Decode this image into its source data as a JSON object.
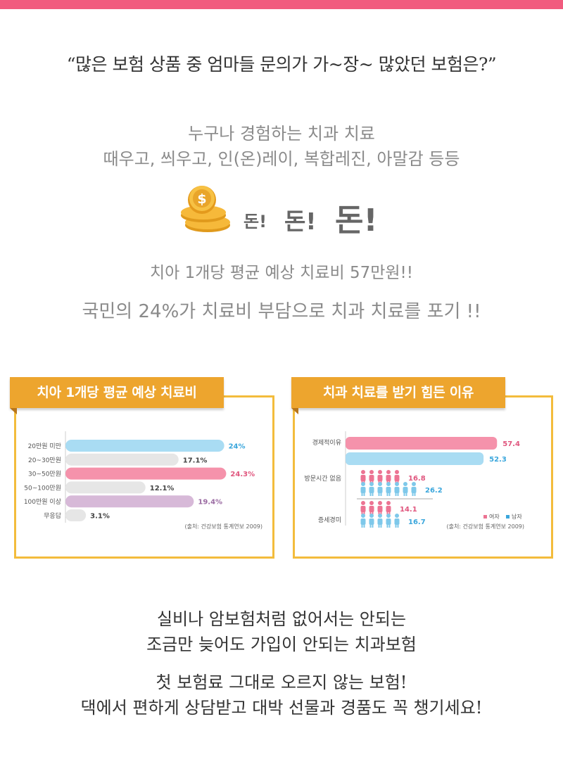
{
  "headline": "“많은 보험 상품 중 엄마들 문의가 가~장~ 많았던 보험은?”",
  "intro": {
    "line1": "누구나 경험하는 치과 치료",
    "line2": "때우고, 씌우고, 인(온)레이, 복합레진, 아말감 등등"
  },
  "money": {
    "word1": "돈!",
    "word2": "돈!",
    "word3": "돈!",
    "icon": "coin-stack-icon"
  },
  "stats": {
    "line1": "치아 1개당 평균 예상 치료비 57만원!!",
    "line2": "국민의 24%가 치료비 부담으로 치과 치료를 포기 !!"
  },
  "colors": {
    "accent_pink": "#f15b7e",
    "ribbon": "#eda52e",
    "panel_border": "#f3bc3c",
    "bar_blue": "#a9dcf3",
    "bar_pink": "#f592ab",
    "bar_purple": "#d7b9d8",
    "bar_gray": "#e6e6e6"
  },
  "chart_data": [
    {
      "type": "bar",
      "title": "치아 1개당 평균 예상 치료비",
      "categories": [
        "20만원 미만",
        "20~30만원",
        "30~50만원",
        "50~100만원",
        "100만원 이상",
        "무응답"
      ],
      "values": [
        24,
        17.1,
        24.3,
        12.1,
        19.4,
        3.1
      ],
      "labels": [
        "24%",
        "17.1%",
        "24.3%",
        "12.1%",
        "19.4%",
        "3.1%"
      ],
      "source": "(출처: 건강보험 통계연보 2009)"
    },
    {
      "type": "bar",
      "title": "치과 치료를 받기 힘든 이유",
      "categories": [
        "경제적이유",
        "방문시간 없음",
        "증세경미"
      ],
      "series": [
        {
          "name": "여자",
          "values": [
            57.4,
            16.8,
            14.1
          ]
        },
        {
          "name": "남자",
          "values": [
            52.3,
            26.2,
            16.7
          ]
        }
      ],
      "legend_female": "여자",
      "legend_male": "남자",
      "source": "(출처: 건강보험 통계연보 2009)"
    }
  ],
  "closing": {
    "line1": "실비나 암보험처럼 없어서는 안되는",
    "line2": "조금만 늦어도 가입이 안되는 치과보험",
    "line3": "첫 보험료 그대로 오르지 않는 보험!",
    "line4": "댁에서 편하게 상담받고 대박 선물과 경품도 꼭 챙기세요!"
  }
}
